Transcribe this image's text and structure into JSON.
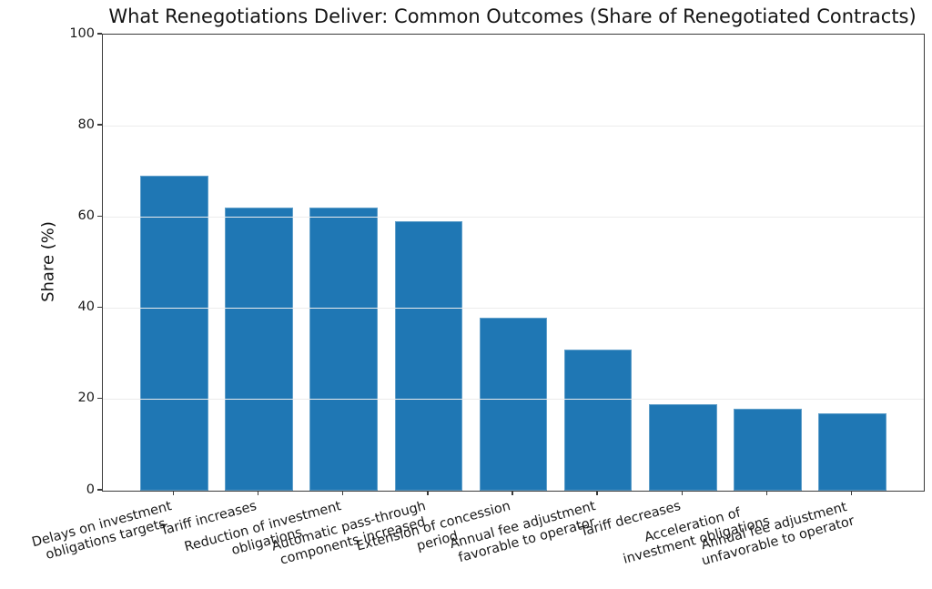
{
  "figure": {
    "background_color": "#ffffff",
    "text_color": "#191919"
  },
  "chart_data": {
    "type": "bar",
    "title": "What Renegotiations Deliver: Common Outcomes (Share of Renegotiated Contracts)",
    "ylabel": "Share (%)",
    "xlabel": "",
    "categories": [
      "Delays on investment\nobligations targets",
      "Tariff increases",
      "Reduction of investment\nobligations",
      "Automatic pass-through\ncomponents increased",
      "Extension of concession\nperiod",
      "Annual fee adjustment\nfavorable to operator",
      "Tariff decreases",
      "Acceleration of\ninvestment obligations",
      "Annual fee adjustment\nunfavorable to operator"
    ],
    "values": [
      69,
      62,
      62,
      59,
      38,
      31,
      19,
      18,
      17
    ],
    "ylim": [
      0,
      100
    ],
    "yticks": [
      0,
      20,
      40,
      60,
      80,
      100
    ],
    "bar_color": "#1f77b4",
    "grid": "y",
    "grid_color": "#ececec",
    "spine_color": "#3a3a3a",
    "legend": "none",
    "x_tick_label_rotation_deg": 15
  }
}
